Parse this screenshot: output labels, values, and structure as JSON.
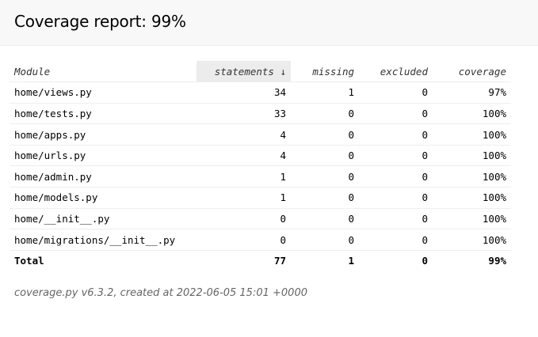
{
  "header": {
    "title": "Coverage report: 99%"
  },
  "table": {
    "columns": {
      "module": "Module",
      "statements": "statements ↓",
      "missing": "missing",
      "excluded": "excluded",
      "coverage": "coverage"
    },
    "rows": [
      {
        "module": "home/views.py",
        "statements": "34",
        "missing": "1",
        "excluded": "0",
        "coverage": "97%"
      },
      {
        "module": "home/tests.py",
        "statements": "33",
        "missing": "0",
        "excluded": "0",
        "coverage": "100%"
      },
      {
        "module": "home/apps.py",
        "statements": "4",
        "missing": "0",
        "excluded": "0",
        "coverage": "100%"
      },
      {
        "module": "home/urls.py",
        "statements": "4",
        "missing": "0",
        "excluded": "0",
        "coverage": "100%"
      },
      {
        "module": "home/admin.py",
        "statements": "1",
        "missing": "0",
        "excluded": "0",
        "coverage": "100%"
      },
      {
        "module": "home/models.py",
        "statements": "1",
        "missing": "0",
        "excluded": "0",
        "coverage": "100%"
      },
      {
        "module": "home/__init__.py",
        "statements": "0",
        "missing": "0",
        "excluded": "0",
        "coverage": "100%"
      },
      {
        "module": "home/migrations/__init__.py",
        "statements": "0",
        "missing": "0",
        "excluded": "0",
        "coverage": "100%"
      }
    ],
    "total": {
      "label": "Total",
      "statements": "77",
      "missing": "1",
      "excluded": "0",
      "coverage": "99%"
    }
  },
  "footer": {
    "text": "coverage.py v6.3.2, created at 2022-06-05 15:01 +0000"
  }
}
